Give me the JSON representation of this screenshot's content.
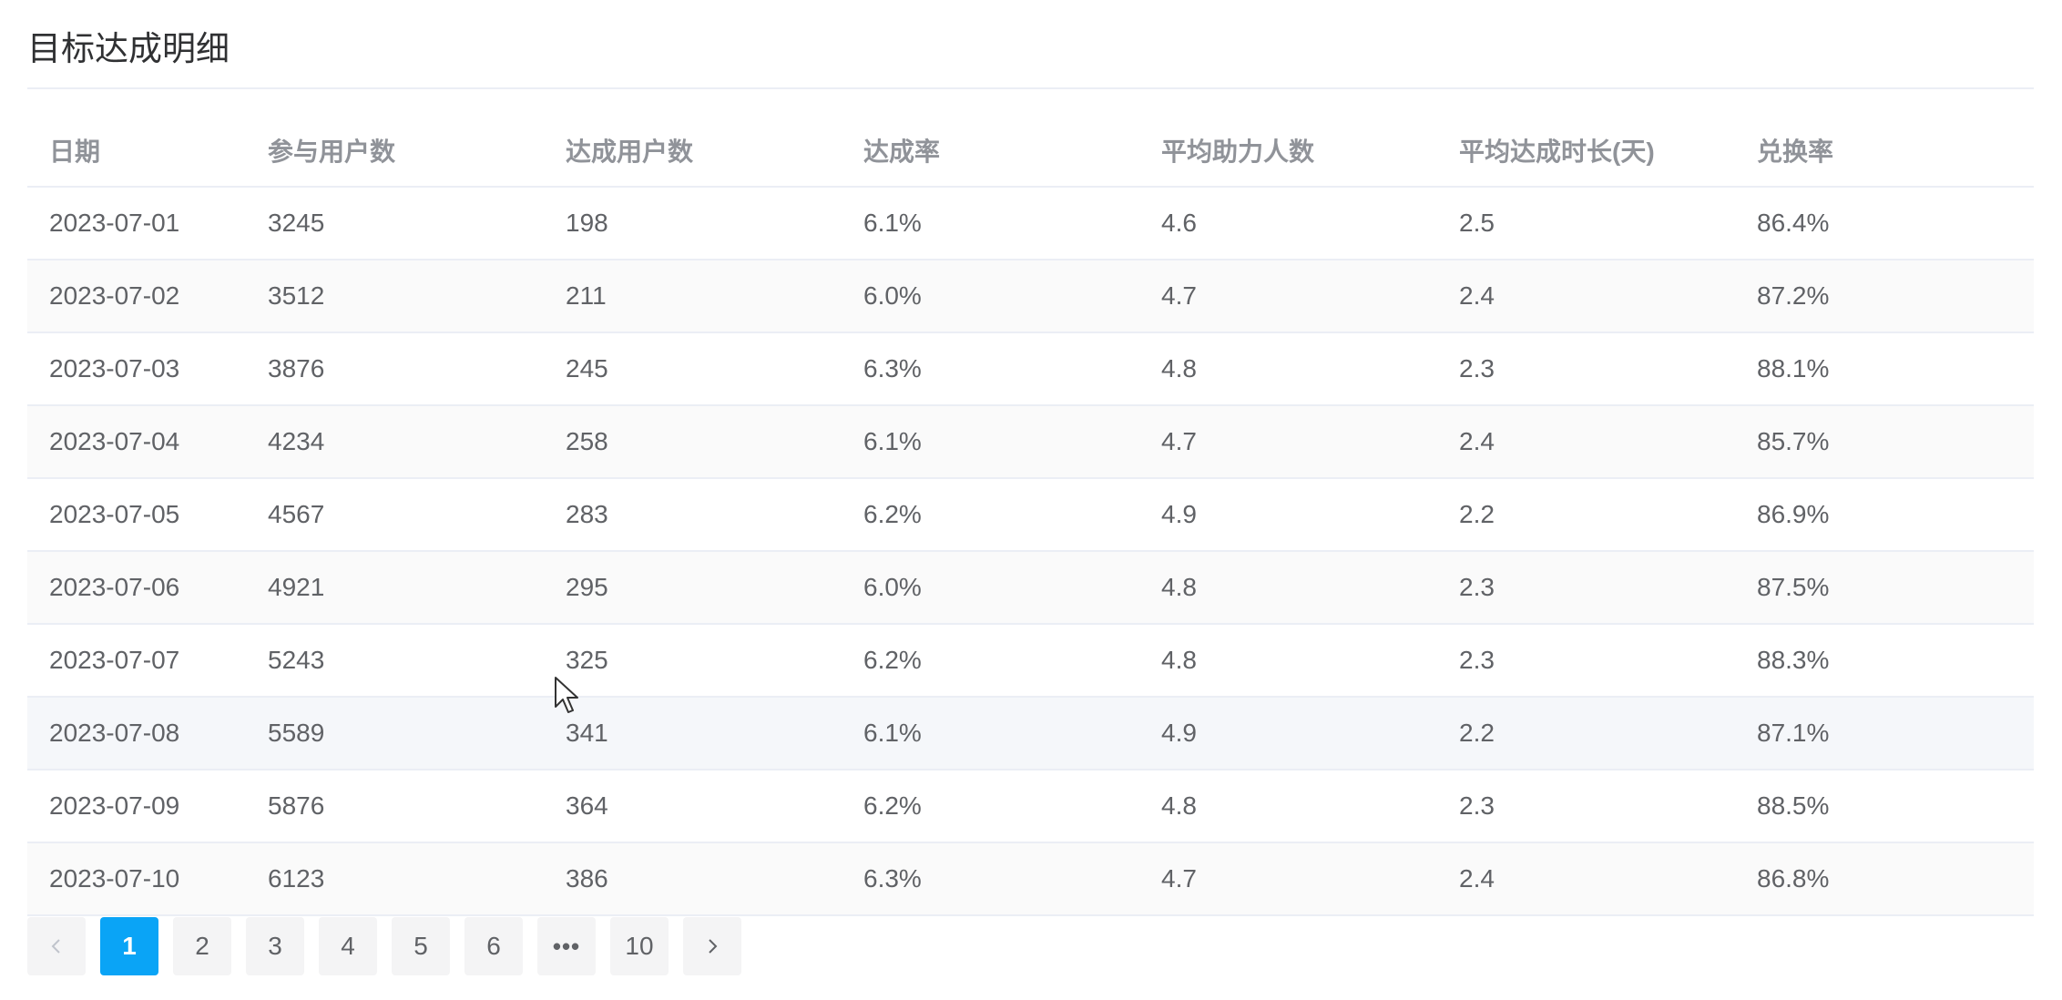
{
  "title": "目标达成明细",
  "table": {
    "columns": [
      "日期",
      "参与用户数",
      "达成用户数",
      "达成率",
      "平均助力人数",
      "平均达成时长(天)",
      "兑换率"
    ],
    "rows": [
      [
        "2023-07-01",
        "3245",
        "198",
        "6.1%",
        "4.6",
        "2.5",
        "86.4%"
      ],
      [
        "2023-07-02",
        "3512",
        "211",
        "6.0%",
        "4.7",
        "2.4",
        "87.2%"
      ],
      [
        "2023-07-03",
        "3876",
        "245",
        "6.3%",
        "4.8",
        "2.3",
        "88.1%"
      ],
      [
        "2023-07-04",
        "4234",
        "258",
        "6.1%",
        "4.7",
        "2.4",
        "85.7%"
      ],
      [
        "2023-07-05",
        "4567",
        "283",
        "6.2%",
        "4.9",
        "2.2",
        "86.9%"
      ],
      [
        "2023-07-06",
        "4921",
        "295",
        "6.0%",
        "4.8",
        "2.3",
        "87.5%"
      ],
      [
        "2023-07-07",
        "5243",
        "325",
        "6.2%",
        "4.8",
        "2.3",
        "88.3%"
      ],
      [
        "2023-07-08",
        "5589",
        "341",
        "6.1%",
        "4.9",
        "2.2",
        "87.1%"
      ],
      [
        "2023-07-09",
        "5876",
        "364",
        "6.2%",
        "4.8",
        "2.3",
        "88.5%"
      ],
      [
        "2023-07-10",
        "6123",
        "386",
        "6.3%",
        "4.7",
        "2.4",
        "86.8%"
      ]
    ]
  },
  "pagination": {
    "prev_icon": "chevron-left-icon",
    "next_icon": "chevron-right-icon",
    "pages": [
      "1",
      "2",
      "3",
      "4",
      "5",
      "6",
      "•••",
      "10"
    ],
    "current": "1"
  },
  "colors": {
    "accent": "#0aa4f6",
    "header_text": "#909399",
    "cell_text": "#606266",
    "border": "#ebeef5"
  }
}
